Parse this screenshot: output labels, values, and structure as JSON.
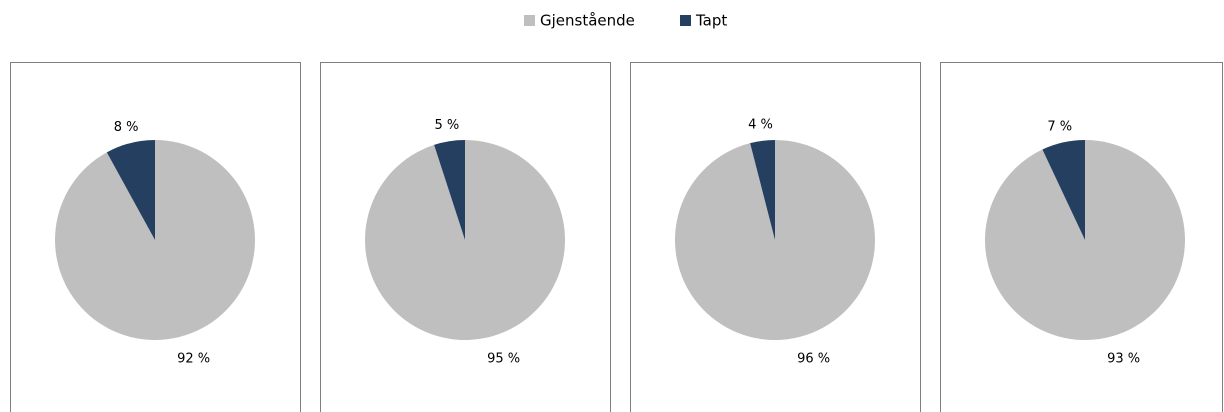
{
  "legend": [
    {
      "name": "Gjenstående",
      "color": "#bfbfbf"
    },
    {
      "name": "Tapt",
      "color": "#243f60"
    }
  ],
  "chart_data": [
    {
      "type": "pie",
      "values": [
        92,
        8
      ],
      "value_labels": [
        "92 %",
        "8 %"
      ]
    },
    {
      "type": "pie",
      "values": [
        95,
        5
      ],
      "value_labels": [
        "95 %",
        "5 %"
      ]
    },
    {
      "type": "pie",
      "values": [
        96,
        4
      ],
      "value_labels": [
        "96 %",
        "4 %"
      ]
    },
    {
      "type": "pie",
      "values": [
        93,
        7
      ],
      "value_labels": [
        "93 %",
        "7 %"
      ]
    }
  ]
}
